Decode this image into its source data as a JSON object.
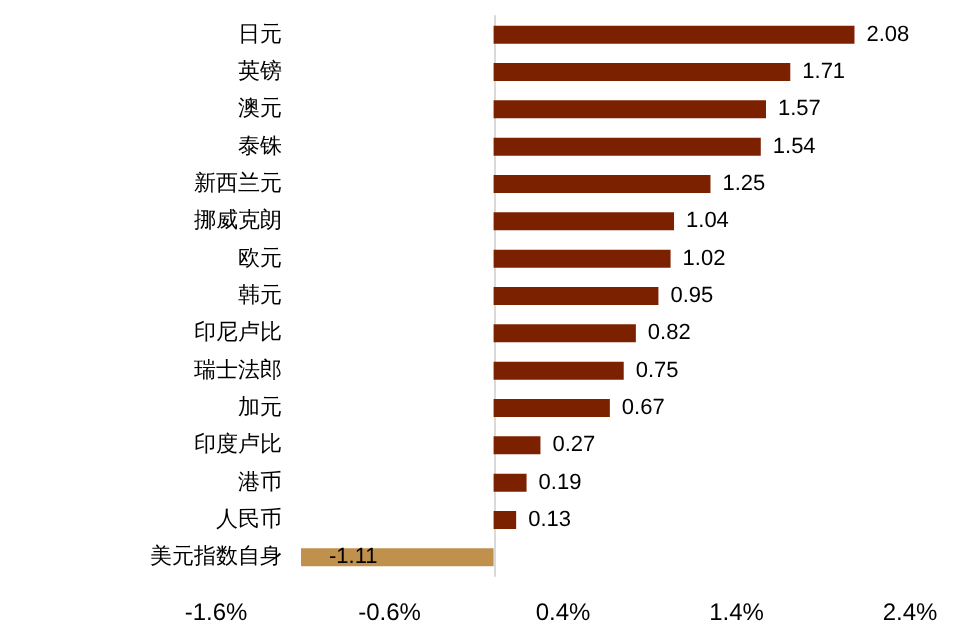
{
  "chart_data": {
    "type": "bar",
    "orientation": "horizontal",
    "categories": [
      "日元",
      "英镑",
      "澳元",
      "泰铢",
      "新西兰元",
      "挪威克朗",
      "欧元",
      "韩元",
      "印尼卢比",
      "瑞士法郎",
      "加元",
      "印度卢比",
      "港币",
      "人民币",
      "美元指数自身"
    ],
    "values": [
      2.08,
      1.71,
      1.57,
      1.54,
      1.25,
      1.04,
      1.02,
      0.95,
      0.82,
      0.75,
      0.67,
      0.27,
      0.19,
      0.13,
      -1.11
    ],
    "colors": [
      "#7b2100",
      "#7b2100",
      "#7b2100",
      "#7b2100",
      "#7b2100",
      "#7b2100",
      "#7b2100",
      "#7b2100",
      "#7b2100",
      "#7b2100",
      "#7b2100",
      "#7b2100",
      "#7b2100",
      "#7b2100",
      "#c0904d"
    ],
    "xlim": [
      -1.6,
      2.4
    ],
    "xticks": [
      {
        "value": -1.6,
        "label": "-1.6%"
      },
      {
        "value": -0.6,
        "label": "-0.6%"
      },
      {
        "value": 0.4,
        "label": "0.4%"
      },
      {
        "value": 1.4,
        "label": "1.4%"
      },
      {
        "value": 2.4,
        "label": "2.4%"
      }
    ],
    "data_labels": true,
    "grid": false
  }
}
